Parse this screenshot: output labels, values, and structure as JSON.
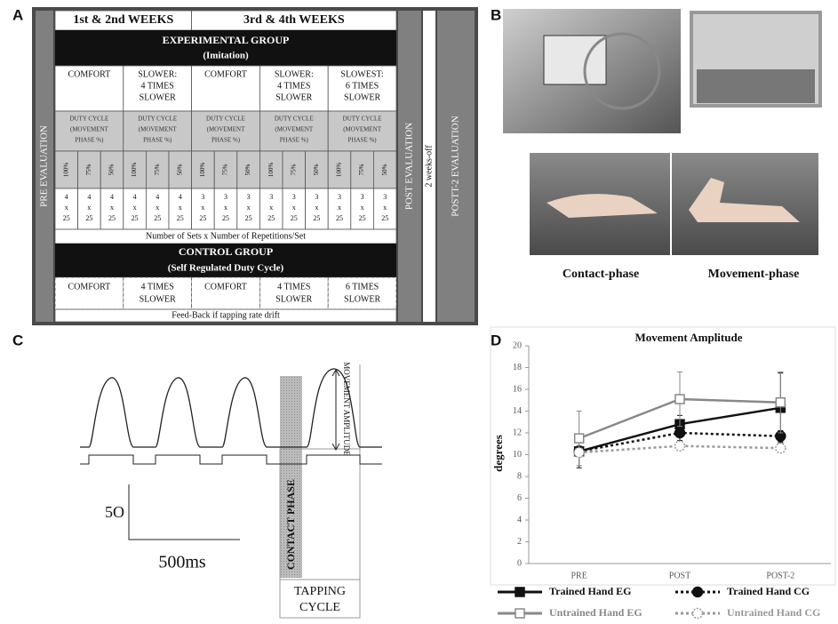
{
  "panel_a": {
    "label": "A",
    "weeks": [
      "1st & 2nd WEEKS",
      "3rd & 4th WEEKS"
    ],
    "experimental_title": "EXPERIMENTAL GROUP",
    "experimental_subtitle": "(Imitation)",
    "conditions": [
      [
        "COMFORT"
      ],
      [
        "SLOWER:",
        "4 TIMES",
        "SLOWER"
      ],
      [
        "COMFORT"
      ],
      [
        "SLOWER:",
        "4 TIMES",
        "SLOWER"
      ],
      [
        "SLOWEST:",
        "6 TIMES",
        "SLOWER"
      ]
    ],
    "duty_cycle": [
      [
        "DUTY CYCLE",
        "(MOVEMENT",
        "PHASE %)"
      ],
      [
        "DUTY CYCLE",
        "(MOVEMENT",
        "PHASE %)"
      ],
      [
        "DUTY CYCLE",
        "(MOVEMENT",
        "PHASE %)"
      ],
      [
        "DUTY CYCLE",
        "(MOVEMENT",
        "PHASE %)"
      ],
      [
        "DUTY CYCLE",
        "(MOVEMENT",
        "PHASE %)"
      ]
    ],
    "percentages": [
      "100%",
      "75%",
      "50%",
      "100%",
      "75%",
      "50%",
      "100%",
      "75%",
      "50%",
      "100%",
      "75%",
      "50%",
      "100%",
      "75%",
      "50%"
    ],
    "sets": [
      [
        "4",
        "x",
        "25"
      ],
      [
        "4",
        "x",
        "25"
      ],
      [
        "4",
        "x",
        "25"
      ],
      [
        "4",
        "x",
        "25"
      ],
      [
        "4",
        "x",
        "25"
      ],
      [
        "4",
        "x",
        "25"
      ],
      [
        "3",
        "x",
        "25"
      ],
      [
        "3",
        "x",
        "25"
      ],
      [
        "3",
        "x",
        "25"
      ],
      [
        "3",
        "x",
        "25"
      ],
      [
        "3",
        "x",
        "25"
      ],
      [
        "3",
        "x",
        "25"
      ],
      [
        "3",
        "x",
        "25"
      ],
      [
        "3",
        "x",
        "25"
      ],
      [
        "3",
        "x",
        "25"
      ]
    ],
    "sets_note": "Number of Sets x Number of Repetitions/Set",
    "control_title": "CONTROL GROUP",
    "control_subtitle": "(Self Regulated Duty Cycle)",
    "control_conditions": [
      [
        "COMFORT"
      ],
      [
        "4 TIMES",
        "SLOWER"
      ],
      [
        "COMFORT"
      ],
      [
        "4 TIMES",
        "SLOWER"
      ],
      [
        "6 TIMES",
        "SLOWER"
      ]
    ],
    "feedback": "Feed-Back if tapping rate drift",
    "pre": "PRE EVALUATION",
    "post": "POST EVALUATION",
    "weeks_off": "2 weeks-off",
    "post2": "POSTT-2 EVALUATION"
  },
  "panel_b": {
    "label": "B",
    "captions": [
      "Contact-phase",
      "Movement-phase"
    ]
  },
  "panel_c": {
    "label": "C",
    "scale_y": "5O",
    "scale_x": "500ms",
    "contact": "CONTACT PHASE",
    "amplitude": "MOVEMENT AMPLITUDE",
    "cycle": [
      "TAPPING",
      "CYCLE"
    ]
  },
  "chart_data": {
    "type": "line",
    "label": "D",
    "title": "Movement Amplitude",
    "y_label": "degrees",
    "categories": [
      "PRE",
      "POST",
      "POST-2"
    ],
    "ylim": [
      0,
      20
    ],
    "yticks": [
      0,
      2,
      4,
      6,
      8,
      10,
      12,
      14,
      16,
      18,
      20
    ],
    "series": [
      {
        "name": "Trained Hand  EG",
        "color": "#111111",
        "style": "solid",
        "marker": "square",
        "filled": true,
        "values": [
          10.3,
          12.8,
          14.3
        ],
        "errors": [
          1.5,
          0.8,
          3.2
        ]
      },
      {
        "name": "Trained Hand CG",
        "color": "#111111",
        "style": "dotted",
        "marker": "circle",
        "filled": true,
        "values": [
          10.3,
          12.0,
          11.7
        ],
        "errors": [
          0.5,
          0.7,
          0.5
        ]
      },
      {
        "name": "Untrained Hand EG",
        "color": "#888888",
        "style": "solid",
        "marker": "square",
        "filled": false,
        "values": [
          11.5,
          15.1,
          14.8
        ],
        "errors": [
          2.5,
          2.5,
          2.8
        ]
      },
      {
        "name": "Untrained Hand CG",
        "color": "#999999",
        "style": "dotted",
        "marker": "circle",
        "filled": false,
        "values": [
          10.2,
          10.8,
          10.6
        ],
        "errors": [
          0.3,
          0.3,
          0.3
        ]
      }
    ]
  }
}
